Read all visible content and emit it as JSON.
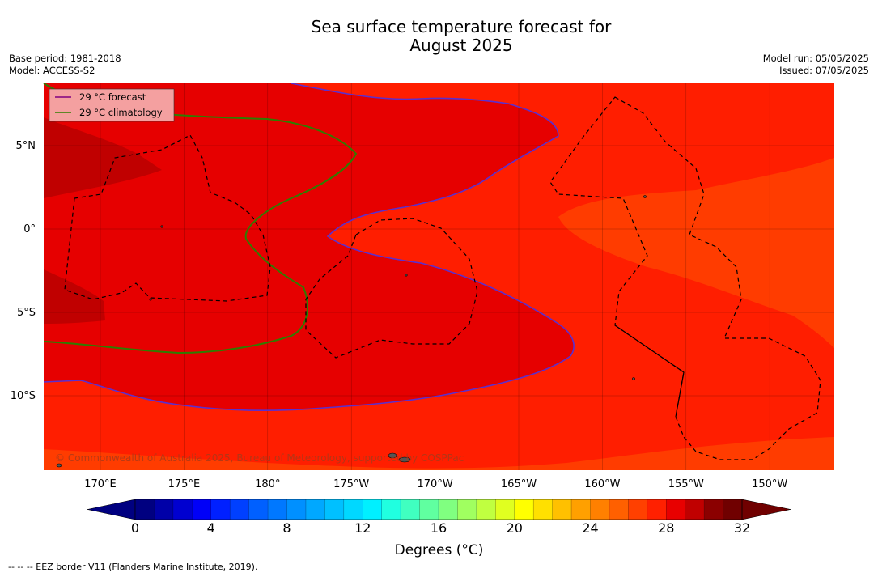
{
  "header": {
    "title_line1": "Sea surface temperature forecast for",
    "title_line2": "August 2025",
    "base_period": "Base period: 1981-2018",
    "model": "Model: ACCESS-S2",
    "model_run": "Model run: 05/05/2025",
    "issued": "Issued: 07/05/2025"
  },
  "map": {
    "lat_labels": [
      "5°N",
      "0°",
      "5°S",
      "10°S"
    ],
    "lon_labels": [
      "170°E",
      "175°E",
      "180°",
      "175°W",
      "170°W",
      "165°W",
      "160°W",
      "155°W",
      "150°W"
    ],
    "legend": [
      {
        "label": "29 °C  forecast",
        "color": "#800080"
      },
      {
        "label": "29 °C  climatology",
        "color": "#2e7d00"
      }
    ],
    "copyright": "© Commonwealth of Australia 2025, Bureau of Meteorology, supported by COSPPac",
    "colors": {
      "t32": "#c00000",
      "t30": "#e60000",
      "t29": "#ff1e00",
      "t28": "#ff3c00"
    }
  },
  "colorbar": {
    "ticks": [
      "0",
      "4",
      "8",
      "12",
      "16",
      "20",
      "24",
      "28",
      "32"
    ],
    "label": "Degrees ($^\\circ$C)",
    "label_display": "Degrees (°C)",
    "colors": [
      "#000080",
      "#0000a8",
      "#0000d0",
      "#0000f8",
      "#0020ff",
      "#0040ff",
      "#0060ff",
      "#0078ff",
      "#0090ff",
      "#00a8ff",
      "#00c0ff",
      "#00d8ff",
      "#00f0ff",
      "#20ffe0",
      "#40ffc0",
      "#60ffa0",
      "#80ff80",
      "#a0ff60",
      "#c0ff40",
      "#e0ff20",
      "#ffff00",
      "#ffe000",
      "#ffc000",
      "#ffa000",
      "#ff8000",
      "#ff6000",
      "#ff4000",
      "#ff2000",
      "#e80000",
      "#c00000",
      "#8b0000",
      "#700000"
    ]
  },
  "footer": {
    "eez_note": "-- -- -- EEZ border V11 (Flanders Marine Institute, 2019)."
  }
}
